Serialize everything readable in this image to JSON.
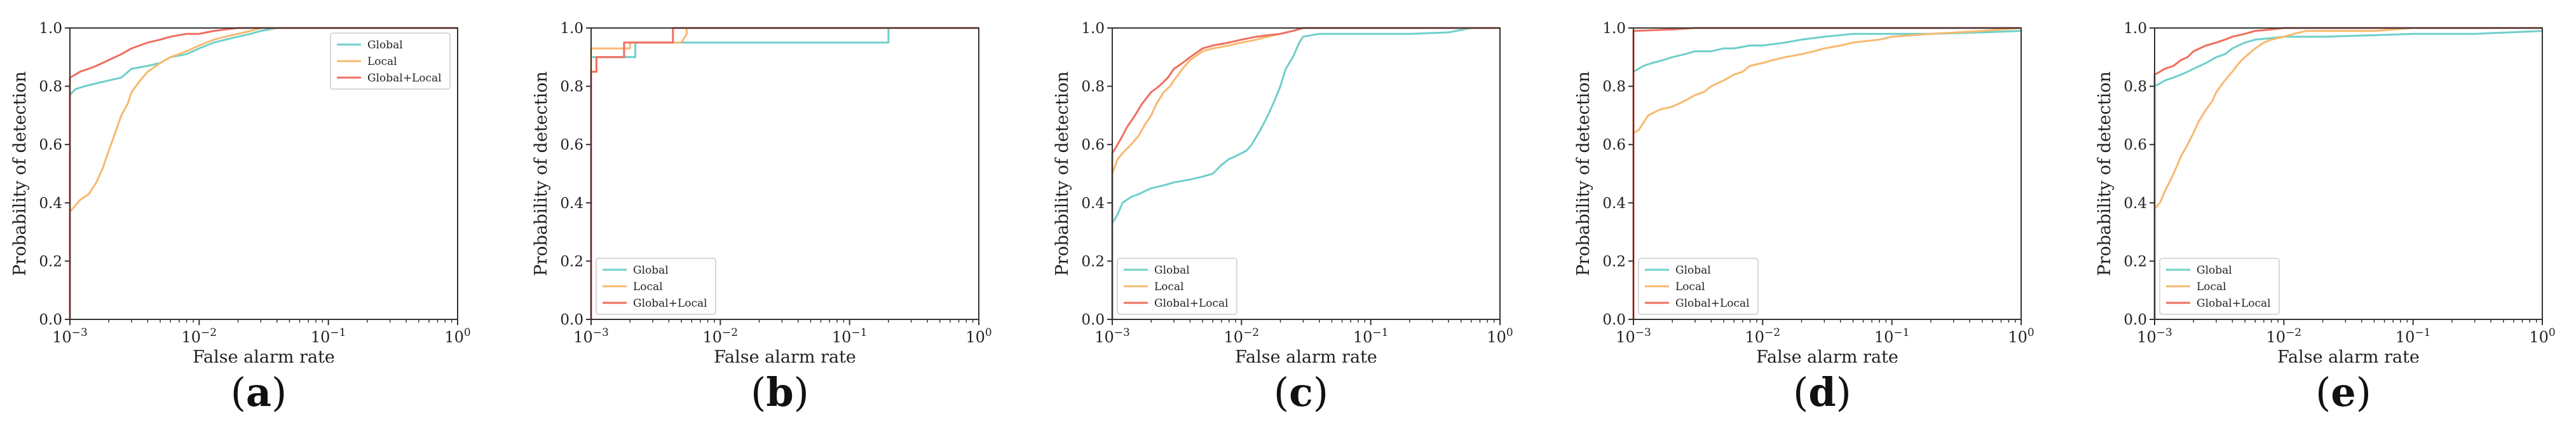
{
  "colors": {
    "global": "#6fcfca",
    "local": "#f7b96f",
    "global_local": "#ee6f5f",
    "axes": "#333333"
  },
  "chart_data": [
    {
      "label_open": "(",
      "label_letter": "a",
      "label_close": ")",
      "type": "line",
      "xscale": "log",
      "xlim": [
        0.001,
        1
      ],
      "ylim": [
        0,
        1
      ],
      "xlabel": "False alarm rate",
      "ylabel": "Probability of detection",
      "xticks": [
        {
          "v": 0.001,
          "base": "10",
          "exp": "−3"
        },
        {
          "v": 0.01,
          "base": "10",
          "exp": "−2"
        },
        {
          "v": 0.1,
          "base": "10",
          "exp": "−1"
        },
        {
          "v": 1,
          "base": "10",
          "exp": "0"
        }
      ],
      "yticks": [
        "0.0",
        "0.2",
        "0.4",
        "0.6",
        "0.8",
        "1.0"
      ],
      "legend": "top-right",
      "series": [
        {
          "name": "Global",
          "color": "global",
          "x": [
            0.001,
            0.001,
            0.0011,
            0.0013,
            0.0016,
            0.002,
            0.0025,
            0.003,
            0.004,
            0.005,
            0.006,
            0.008,
            0.01,
            0.013,
            0.016,
            0.02,
            0.025,
            0.03,
            0.04,
            1
          ],
          "y": [
            0,
            0.77,
            0.79,
            0.8,
            0.81,
            0.82,
            0.83,
            0.86,
            0.87,
            0.88,
            0.9,
            0.91,
            0.93,
            0.95,
            0.96,
            0.97,
            0.98,
            0.99,
            1.0,
            1.0
          ]
        },
        {
          "name": "Local",
          "color": "local",
          "x": [
            0.001,
            0.001,
            0.0011,
            0.0012,
            0.0014,
            0.0016,
            0.0018,
            0.002,
            0.0022,
            0.0025,
            0.0028,
            0.003,
            0.0035,
            0.004,
            0.005,
            0.006,
            0.008,
            0.01,
            0.013,
            0.016,
            0.02,
            0.025,
            0.03,
            0.04,
            1
          ],
          "y": [
            0,
            0.37,
            0.39,
            0.41,
            0.43,
            0.47,
            0.52,
            0.58,
            0.63,
            0.7,
            0.74,
            0.78,
            0.82,
            0.85,
            0.88,
            0.9,
            0.92,
            0.94,
            0.96,
            0.97,
            0.98,
            0.99,
            1.0,
            1.0,
            1.0
          ]
        },
        {
          "name": "Global+Local",
          "color": "global_local",
          "x": [
            0.001,
            0.001,
            0.0011,
            0.0012,
            0.0014,
            0.0016,
            0.002,
            0.0025,
            0.003,
            0.004,
            0.005,
            0.006,
            0.008,
            0.01,
            0.013,
            0.016,
            0.02,
            1
          ],
          "y": [
            0,
            0.83,
            0.84,
            0.85,
            0.86,
            0.87,
            0.89,
            0.91,
            0.93,
            0.95,
            0.96,
            0.97,
            0.98,
            0.98,
            0.99,
            0.995,
            1.0,
            1.0
          ]
        }
      ]
    },
    {
      "label_open": "(",
      "label_letter": "b",
      "label_close": ")",
      "type": "line",
      "xscale": "log",
      "xlim": [
        0.001,
        1
      ],
      "ylim": [
        0,
        1
      ],
      "xlabel": "False alarm rate",
      "ylabel": "Probability of detection",
      "xticks": [
        {
          "v": 0.001,
          "base": "10",
          "exp": "−3"
        },
        {
          "v": 0.01,
          "base": "10",
          "exp": "−2"
        },
        {
          "v": 0.1,
          "base": "10",
          "exp": "−1"
        },
        {
          "v": 1,
          "base": "10",
          "exp": "0"
        }
      ],
      "yticks": [
        "0.0",
        "0.2",
        "0.4",
        "0.6",
        "0.8",
        "1.0"
      ],
      "legend": "bottom-left",
      "series": [
        {
          "name": "Global",
          "color": "global",
          "x": [
            0.001,
            0.001,
            0.0014,
            0.0014,
            0.0022,
            0.0022,
            0.005,
            0.01,
            0.05,
            0.1,
            0.2,
            0.2,
            1
          ],
          "y": [
            0,
            0.9,
            0.9,
            0.9,
            0.9,
            0.95,
            0.95,
            0.95,
            0.95,
            0.95,
            0.95,
            1.0,
            1.0
          ]
        },
        {
          "name": "Local",
          "color": "local",
          "x": [
            0.001,
            0.001,
            0.002,
            0.002,
            0.004,
            0.005,
            0.0055,
            0.0055,
            1
          ],
          "y": [
            0,
            0.93,
            0.93,
            0.95,
            0.95,
            0.95,
            0.98,
            1.0,
            1.0
          ]
        },
        {
          "name": "Global+Local",
          "color": "global_local",
          "x": [
            0.001,
            0.001,
            0.0011,
            0.0011,
            0.0018,
            0.0018,
            0.0043,
            0.0043,
            1
          ],
          "y": [
            0,
            0.85,
            0.85,
            0.9,
            0.9,
            0.95,
            0.95,
            1.0,
            1.0
          ]
        }
      ]
    },
    {
      "label_open": "(",
      "label_letter": "c",
      "label_close": ")",
      "type": "line",
      "xscale": "log",
      "xlim": [
        0.001,
        1
      ],
      "ylim": [
        0,
        1
      ],
      "xlabel": "False alarm rate",
      "ylabel": "Probability of detection",
      "xticks": [
        {
          "v": 0.001,
          "base": "10",
          "exp": "−3"
        },
        {
          "v": 0.01,
          "base": "10",
          "exp": "−2"
        },
        {
          "v": 0.1,
          "base": "10",
          "exp": "−1"
        },
        {
          "v": 1,
          "base": "10",
          "exp": "0"
        }
      ],
      "yticks": [
        "0.0",
        "0.2",
        "0.4",
        "0.6",
        "0.8",
        "1.0"
      ],
      "legend": "bottom-left",
      "series": [
        {
          "name": "Global",
          "color": "global",
          "x": [
            0.001,
            0.001,
            0.0011,
            0.0012,
            0.0014,
            0.0016,
            0.002,
            0.0025,
            0.003,
            0.004,
            0.005,
            0.006,
            0.007,
            0.008,
            0.009,
            0.01,
            0.011,
            0.012,
            0.014,
            0.016,
            0.018,
            0.02,
            0.022,
            0.025,
            0.028,
            0.03,
            0.04,
            0.1,
            0.2,
            0.4,
            0.6,
            1
          ],
          "y": [
            0,
            0.33,
            0.36,
            0.4,
            0.42,
            0.43,
            0.45,
            0.46,
            0.47,
            0.48,
            0.49,
            0.5,
            0.53,
            0.55,
            0.56,
            0.57,
            0.58,
            0.6,
            0.65,
            0.7,
            0.75,
            0.8,
            0.86,
            0.9,
            0.95,
            0.97,
            0.98,
            0.98,
            0.98,
            0.985,
            1.0,
            1.0
          ]
        },
        {
          "name": "Local",
          "color": "local",
          "x": [
            0.001,
            0.001,
            0.0011,
            0.0012,
            0.0014,
            0.0016,
            0.0018,
            0.002,
            0.0022,
            0.0025,
            0.0028,
            0.003,
            0.0035,
            0.004,
            0.005,
            0.006,
            0.008,
            0.01,
            0.013,
            0.016,
            0.02,
            0.025,
            0.03,
            0.04,
            1
          ],
          "y": [
            0,
            0.5,
            0.55,
            0.57,
            0.6,
            0.63,
            0.67,
            0.7,
            0.74,
            0.78,
            0.8,
            0.82,
            0.86,
            0.89,
            0.92,
            0.93,
            0.94,
            0.95,
            0.96,
            0.97,
            0.98,
            0.99,
            1.0,
            1.0,
            1.0
          ]
        },
        {
          "name": "Global+Local",
          "color": "global_local",
          "x": [
            0.001,
            0.001,
            0.0011,
            0.0012,
            0.0013,
            0.0015,
            0.0017,
            0.002,
            0.0023,
            0.0027,
            0.003,
            0.0035,
            0.004,
            0.005,
            0.006,
            0.008,
            0.01,
            0.013,
            0.016,
            0.02,
            0.025,
            0.03,
            1
          ],
          "y": [
            0,
            0.57,
            0.6,
            0.63,
            0.66,
            0.7,
            0.74,
            0.78,
            0.8,
            0.83,
            0.86,
            0.88,
            0.9,
            0.93,
            0.94,
            0.95,
            0.96,
            0.97,
            0.975,
            0.98,
            0.99,
            1.0,
            1.0
          ]
        }
      ]
    },
    {
      "label_open": "(",
      "label_letter": "d",
      "label_close": ")",
      "type": "line",
      "xscale": "log",
      "xlim": [
        0.001,
        1
      ],
      "ylim": [
        0,
        1
      ],
      "xlabel": "False alarm rate",
      "ylabel": "Probability of detection",
      "xticks": [
        {
          "v": 0.001,
          "base": "10",
          "exp": "−3"
        },
        {
          "v": 0.01,
          "base": "10",
          "exp": "−2"
        },
        {
          "v": 0.1,
          "base": "10",
          "exp": "−1"
        },
        {
          "v": 1,
          "base": "10",
          "exp": "0"
        }
      ],
      "yticks": [
        "0.0",
        "0.2",
        "0.4",
        "0.6",
        "0.8",
        "1.0"
      ],
      "legend": "bottom-left",
      "series": [
        {
          "name": "Global",
          "color": "global",
          "x": [
            0.001,
            0.001,
            0.0012,
            0.0014,
            0.0017,
            0.002,
            0.0025,
            0.003,
            0.004,
            0.005,
            0.006,
            0.008,
            0.01,
            0.015,
            0.02,
            0.03,
            0.05,
            0.1,
            0.2,
            0.5,
            1
          ],
          "y": [
            0,
            0.85,
            0.87,
            0.88,
            0.89,
            0.9,
            0.91,
            0.92,
            0.92,
            0.93,
            0.93,
            0.94,
            0.94,
            0.95,
            0.96,
            0.97,
            0.98,
            0.98,
            0.98,
            0.985,
            0.99
          ]
        },
        {
          "name": "Local",
          "color": "local",
          "x": [
            0.001,
            0.001,
            0.0011,
            0.0013,
            0.0016,
            0.002,
            0.0025,
            0.003,
            0.0035,
            0.004,
            0.005,
            0.006,
            0.007,
            0.008,
            0.01,
            0.012,
            0.015,
            0.02,
            0.025,
            0.03,
            0.04,
            0.05,
            0.08,
            0.1,
            0.2,
            0.5,
            1
          ],
          "y": [
            0,
            0.64,
            0.65,
            0.7,
            0.72,
            0.73,
            0.75,
            0.77,
            0.78,
            0.8,
            0.82,
            0.84,
            0.85,
            0.87,
            0.88,
            0.89,
            0.9,
            0.91,
            0.92,
            0.93,
            0.94,
            0.95,
            0.96,
            0.97,
            0.98,
            0.99,
            1.0
          ]
        },
        {
          "name": "Global+Local",
          "color": "global_local",
          "x": [
            0.001,
            0.001,
            0.002,
            0.003,
            1
          ],
          "y": [
            0,
            0.99,
            0.995,
            1.0,
            1.0
          ]
        }
      ]
    },
    {
      "label_open": "(",
      "label_letter": "e",
      "label_close": ")",
      "type": "line",
      "xscale": "log",
      "xlim": [
        0.001,
        1
      ],
      "ylim": [
        0,
        1
      ],
      "xlabel": "False alarm rate",
      "ylabel": "Probability of detection",
      "xticks": [
        {
          "v": 0.001,
          "base": "10",
          "exp": "−3"
        },
        {
          "v": 0.01,
          "base": "10",
          "exp": "−2"
        },
        {
          "v": 0.1,
          "base": "10",
          "exp": "−1"
        },
        {
          "v": 1,
          "base": "10",
          "exp": "0"
        }
      ],
      "yticks": [
        "0.0",
        "0.2",
        "0.4",
        "0.6",
        "0.8",
        "1.0"
      ],
      "legend": "bottom-left",
      "series": [
        {
          "name": "Global",
          "color": "global",
          "x": [
            0.001,
            0.001,
            0.0011,
            0.0012,
            0.0014,
            0.0016,
            0.0018,
            0.002,
            0.0025,
            0.003,
            0.0035,
            0.004,
            0.005,
            0.006,
            0.008,
            0.01,
            0.02,
            0.05,
            0.1,
            0.3,
            1
          ],
          "y": [
            0,
            0.8,
            0.81,
            0.82,
            0.83,
            0.84,
            0.85,
            0.86,
            0.88,
            0.9,
            0.91,
            0.93,
            0.95,
            0.96,
            0.965,
            0.97,
            0.97,
            0.975,
            0.98,
            0.98,
            0.99
          ]
        },
        {
          "name": "Local",
          "color": "local",
          "x": [
            0.001,
            0.001,
            0.0011,
            0.0012,
            0.0013,
            0.0014,
            0.0015,
            0.0016,
            0.0018,
            0.002,
            0.0022,
            0.0025,
            0.0028,
            0.003,
            0.0035,
            0.004,
            0.0045,
            0.005,
            0.006,
            0.007,
            0.008,
            0.01,
            0.012,
            0.015,
            0.02,
            0.05,
            0.1,
            1
          ],
          "y": [
            0,
            0.38,
            0.4,
            0.44,
            0.47,
            0.5,
            0.53,
            0.56,
            0.6,
            0.64,
            0.68,
            0.72,
            0.75,
            0.78,
            0.82,
            0.85,
            0.88,
            0.9,
            0.93,
            0.95,
            0.96,
            0.97,
            0.98,
            0.99,
            0.99,
            0.99,
            1.0,
            1.0
          ]
        },
        {
          "name": "Global+Local",
          "color": "global_local",
          "x": [
            0.001,
            0.001,
            0.0011,
            0.0012,
            0.0014,
            0.0016,
            0.0018,
            0.002,
            0.0025,
            0.003,
            0.0035,
            0.004,
            0.005,
            0.006,
            0.008,
            0.01,
            1
          ],
          "y": [
            0,
            0.84,
            0.85,
            0.86,
            0.87,
            0.89,
            0.9,
            0.92,
            0.94,
            0.95,
            0.96,
            0.97,
            0.98,
            0.99,
            0.995,
            1.0,
            1.0
          ]
        }
      ]
    }
  ]
}
